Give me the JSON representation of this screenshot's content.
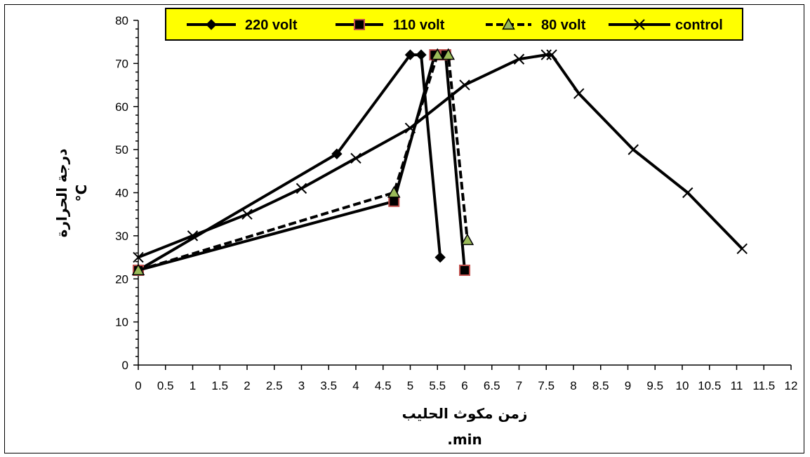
{
  "chart_data": {
    "type": "line",
    "title": "",
    "xlabel": "زمن مكوث الحليب",
    "xlabel_unit": ".min",
    "ylabel": "درجة الحرارة",
    "ylabel_unit": "°C",
    "xlim": [
      0,
      12
    ],
    "ylim": [
      0,
      80
    ],
    "x_ticks": [
      "0",
      "0.5",
      "1",
      "1.5",
      "2",
      "2.5",
      "3",
      "3.5",
      "4",
      "4.5",
      "5",
      "5.5",
      "6",
      "6.5",
      "7",
      "7.5",
      "8",
      "8.5",
      "9",
      "9.5",
      "10",
      "10.5",
      "11",
      "11.5",
      "12"
    ],
    "y_ticks": [
      "0",
      "10",
      "20",
      "30",
      "40",
      "50",
      "60",
      "70",
      "80"
    ],
    "grid": false,
    "legend_position": "top",
    "legend_background": "#ffff00",
    "series": [
      {
        "name": "220 volt",
        "marker": "diamond",
        "line_style": "solid",
        "marker_fill": "#000000",
        "marker_stroke": "#000000",
        "points": [
          [
            0,
            22
          ],
          [
            3.65,
            49
          ],
          [
            5.0,
            72
          ],
          [
            5.2,
            72
          ],
          [
            5.55,
            25
          ]
        ]
      },
      {
        "name": "110 volt",
        "marker": "square",
        "line_style": "solid",
        "marker_fill": "#000000",
        "marker_stroke": "#c0504d",
        "points": [
          [
            0,
            22
          ],
          [
            4.7,
            38
          ],
          [
            5.45,
            72
          ],
          [
            5.65,
            72
          ],
          [
            6.0,
            22
          ]
        ]
      },
      {
        "name": "80 volt",
        "marker": "triangle",
        "line_style": "dashed",
        "marker_fill": "#9bbb59",
        "marker_stroke": "#000000",
        "points": [
          [
            0,
            22
          ],
          [
            4.7,
            40
          ],
          [
            5.5,
            72
          ],
          [
            5.7,
            72
          ],
          [
            6.05,
            29
          ]
        ]
      },
      {
        "name": "control",
        "marker": "x",
        "line_style": "solid",
        "marker_fill": "none",
        "marker_stroke": "#000000",
        "points": [
          [
            0,
            25
          ],
          [
            1,
            30
          ],
          [
            2,
            35
          ],
          [
            3,
            41
          ],
          [
            4,
            48
          ],
          [
            5,
            55
          ],
          [
            6,
            65
          ],
          [
            7,
            71
          ],
          [
            7.5,
            72
          ],
          [
            7.6,
            72
          ],
          [
            8.1,
            63
          ],
          [
            9.1,
            50
          ],
          [
            10.1,
            40
          ],
          [
            11.1,
            27
          ]
        ]
      }
    ]
  }
}
